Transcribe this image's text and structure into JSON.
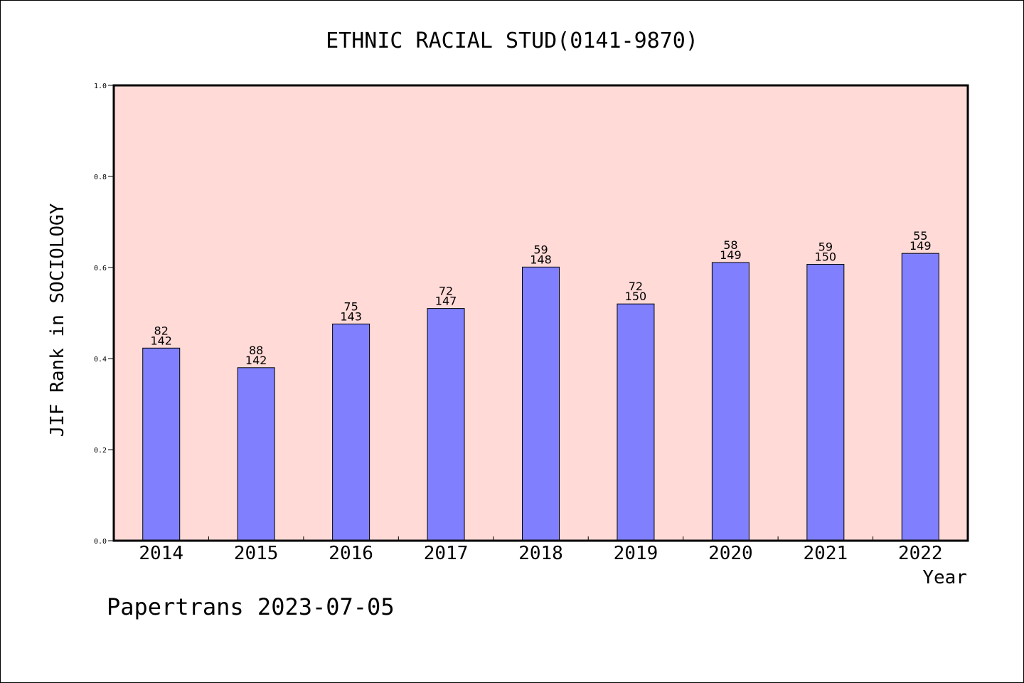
{
  "chart_data": {
    "type": "bar",
    "title": "ETHNIC RACIAL STUD(0141-9870)",
    "xlabel": "Year",
    "ylabel": "JIF Rank in SOCIOLOGY",
    "ylim": [
      0,
      1.0
    ],
    "yticks": [
      "0.0",
      "0.2",
      "0.4",
      "0.6",
      "0.8",
      "1.0"
    ],
    "categories": [
      "2014",
      "2015",
      "2016",
      "2017",
      "2018",
      "2019",
      "2020",
      "2021",
      "2022"
    ],
    "values": [
      0.423,
      0.38,
      0.476,
      0.51,
      0.601,
      0.52,
      0.611,
      0.607,
      0.631
    ],
    "bar_labels": [
      {
        "rank": "82",
        "total": "142"
      },
      {
        "rank": "88",
        "total": "142"
      },
      {
        "rank": "75",
        "total": "143"
      },
      {
        "rank": "72",
        "total": "147"
      },
      {
        "rank": "59",
        "total": "148"
      },
      {
        "rank": "72",
        "total": "150"
      },
      {
        "rank": "58",
        "total": "149"
      },
      {
        "rank": "59",
        "total": "150"
      },
      {
        "rank": "55",
        "total": "149"
      }
    ],
    "colors": {
      "plot_background": "#ffdad7",
      "bar": "#8080ff"
    },
    "grid": false
  },
  "footer": {
    "credit": "Papertrans 2023-07-05"
  }
}
